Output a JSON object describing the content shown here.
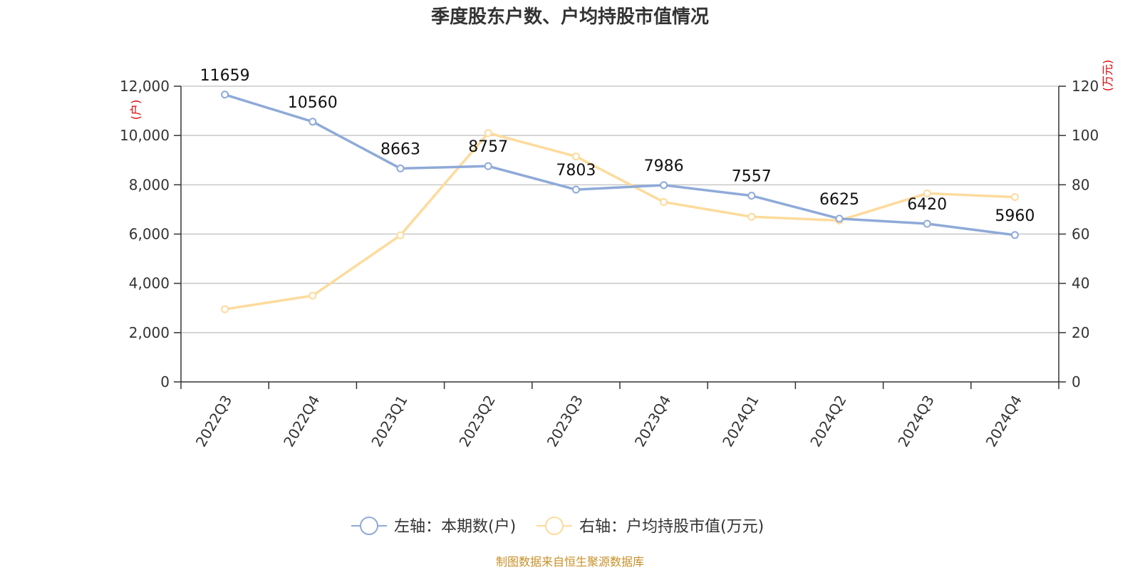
{
  "chart_data": {
    "type": "line",
    "title": "季度股东户数、户均持股市值情况",
    "categories": [
      "2022Q3",
      "2022Q4",
      "2023Q1",
      "2023Q2",
      "2023Q3",
      "2023Q4",
      "2024Q1",
      "2024Q2",
      "2024Q3",
      "2024Q4"
    ],
    "y_left": {
      "unit": "(户)",
      "range": [
        0,
        12000
      ],
      "ticks": [
        "0",
        "2,000",
        "4,000",
        "6,000",
        "8,000",
        "10,000",
        "12,000"
      ]
    },
    "y_right": {
      "unit": "(万元)",
      "range": [
        0,
        120
      ],
      "ticks": [
        "0",
        "20",
        "40",
        "60",
        "80",
        "100",
        "120"
      ]
    },
    "grid": true,
    "legend_position": "bottom",
    "series": [
      {
        "name": "左轴：本期数(户)",
        "axis": "left",
        "color": "#8eaad8",
        "values": [
          11659,
          10560,
          8663,
          8757,
          7803,
          7986,
          7557,
          6625,
          6420,
          5960
        ],
        "labels": [
          "11659",
          "10560",
          "8663",
          "8757",
          "7803",
          "7986",
          "7557",
          "6625",
          "6420",
          "5960"
        ]
      },
      {
        "name": "右轴：户均持股市值(万元)",
        "axis": "right",
        "color": "#fddb9c",
        "values": [
          29.5,
          35,
          59.5,
          101,
          91.5,
          73,
          67,
          65.5,
          76.5,
          75
        ]
      }
    ],
    "source": "制图数据来自恒生聚源数据库"
  }
}
